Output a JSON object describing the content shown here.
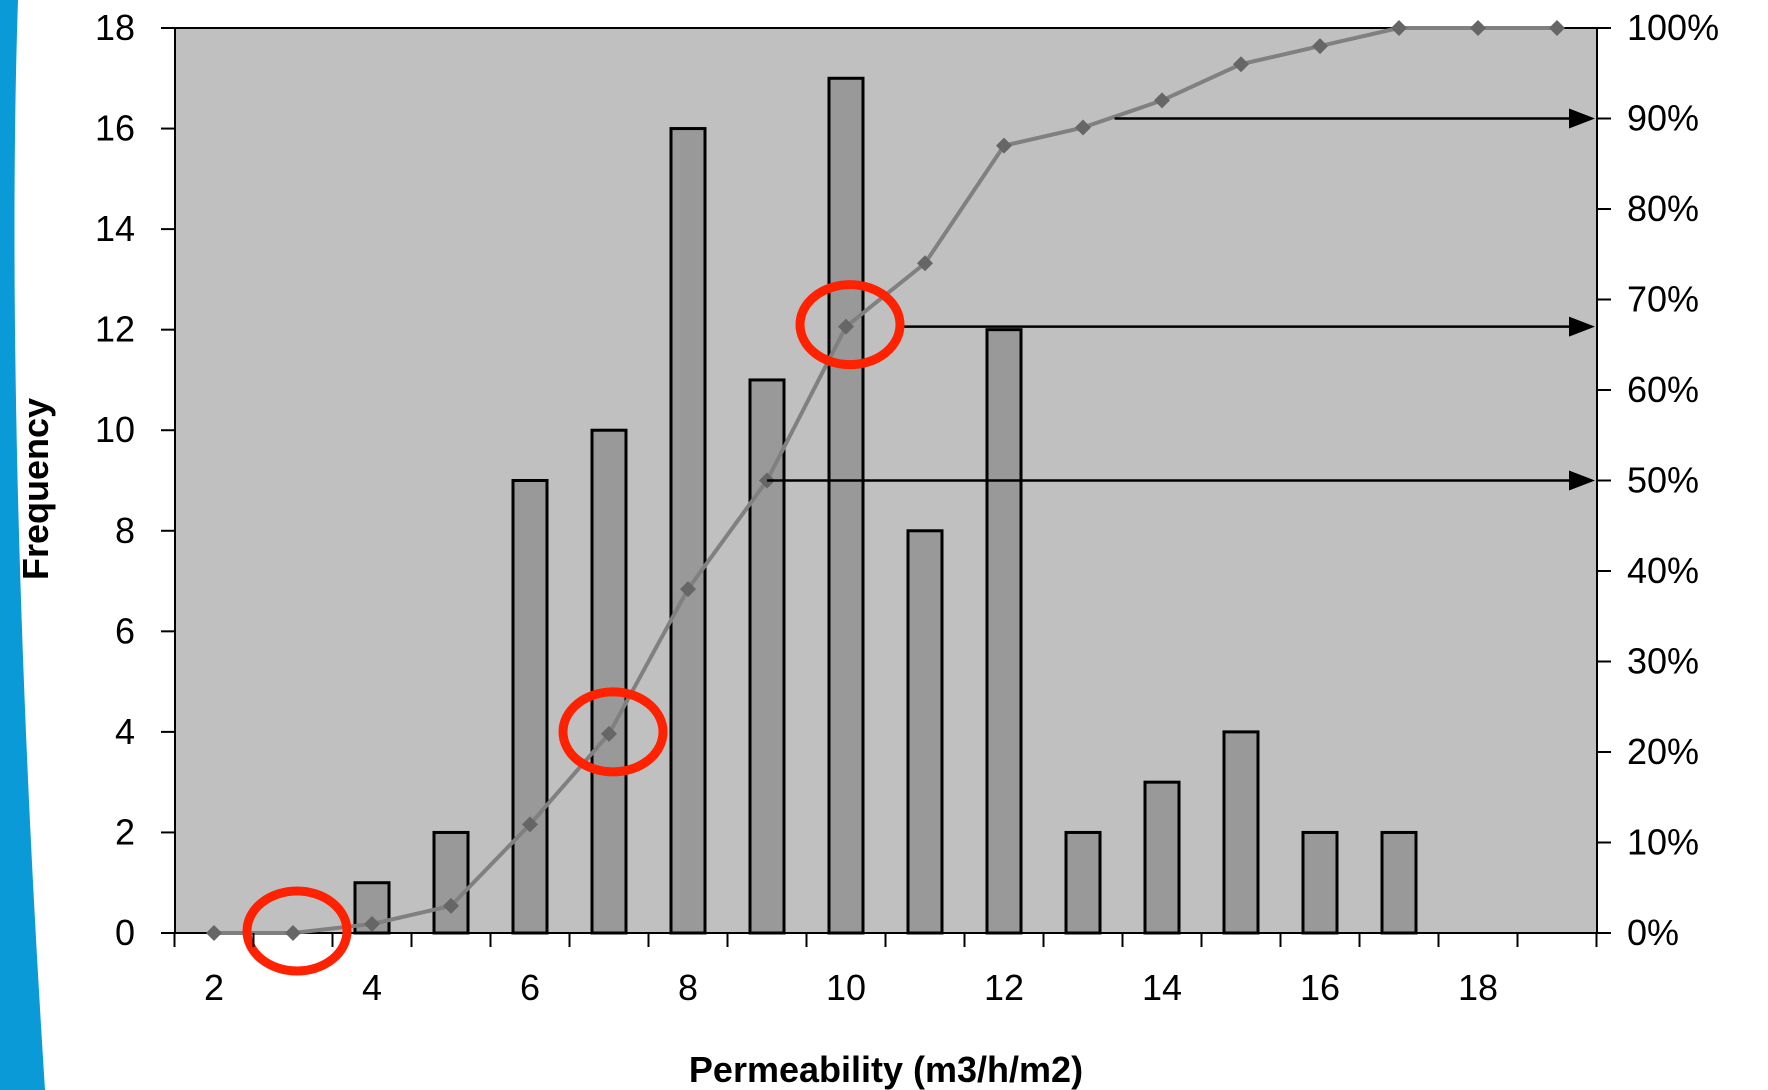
{
  "chart_data": {
    "type": "bar",
    "xlabel": "Permeability (m3/h/m2)",
    "ylabel": "Frequency",
    "xlim": [
      1.5,
      19.5
    ],
    "ylim": [
      0,
      18
    ],
    "y2lim": [
      0,
      100
    ],
    "x_ticks": [
      2,
      4,
      6,
      8,
      10,
      12,
      14,
      16,
      18
    ],
    "y_ticks": [
      0,
      2,
      4,
      6,
      8,
      10,
      12,
      14,
      16,
      18
    ],
    "y2_ticks": [
      "0%",
      "10%",
      "20%",
      "30%",
      "40%",
      "50%",
      "60%",
      "70%",
      "80%",
      "90%",
      "100%"
    ],
    "grid": false,
    "series": [
      {
        "type": "bar",
        "axis": "left",
        "x": [
          4,
          5,
          6,
          7,
          8,
          9,
          10,
          11,
          12,
          13,
          14,
          15,
          16,
          17
        ],
        "values": [
          1,
          2,
          9,
          10,
          16,
          11,
          17,
          8,
          12,
          2,
          3,
          4,
          2,
          2
        ],
        "color": "#999999"
      },
      {
        "type": "line",
        "axis": "right",
        "x": [
          2,
          3,
          4,
          5,
          6,
          7,
          8,
          9,
          10,
          11,
          12,
          13,
          14,
          15,
          16,
          17,
          18,
          19
        ],
        "values": [
          0,
          0,
          1,
          3,
          12,
          22,
          38,
          50,
          67,
          74,
          87,
          89,
          92,
          96,
          98,
          100,
          100,
          100
        ],
        "color": "#808080",
        "marker_color": "#666666"
      }
    ],
    "annotations": {
      "circles_at": [
        [
          3,
          0
        ],
        [
          7,
          22
        ],
        [
          10,
          67
        ]
      ],
      "circle_color": "#ff2200",
      "arrows": [
        {
          "from_x": 9,
          "to_percent": 50
        },
        {
          "from_x": 10.7,
          "to_percent": 67
        },
        {
          "from_x": 13.4,
          "to_percent": 90
        }
      ]
    },
    "plot_background": "#c0c0c0",
    "accent_stripe": "#0a9ad8"
  }
}
